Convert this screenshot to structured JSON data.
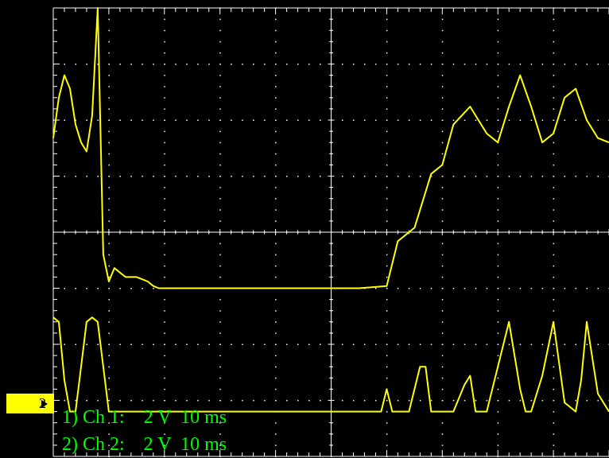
{
  "channel_marker": "2",
  "readouts": {
    "ch1": "1) Ch 1:    2 V  10 ms",
    "ch2": "2) Ch 2:    2 V  10 ms"
  },
  "colors": {
    "background": "#000000",
    "grid": "#ffffff",
    "trace": "#ffff00",
    "readout_text": "#00ff00",
    "marker_bg": "#ffff00"
  },
  "icons": {
    "marker_arrow": "right-pointer-icon"
  },
  "chart_data": {
    "type": "line",
    "title": "",
    "xlabel": "",
    "ylabel": "",
    "grid": true,
    "xlim": [
      0,
      100
    ],
    "ylim": [
      -5,
      5
    ],
    "series": [
      {
        "x": [
          0,
          1,
          2,
          3,
          4,
          5,
          6,
          7,
          8,
          9,
          10,
          11,
          12,
          13,
          14,
          15,
          16,
          17,
          18,
          19,
          20,
          25,
          30,
          35,
          40,
          45,
          50,
          55,
          60,
          62,
          65,
          68,
          70,
          72,
          75,
          78,
          80,
          82,
          84,
          86,
          88,
          90,
          92,
          94,
          96,
          98,
          100
        ],
        "y": [
          2.1,
          3,
          3.5,
          3.2,
          2.4,
          2,
          1.8,
          2.6,
          5,
          -0.5,
          -1.1,
          -0.8,
          -0.9,
          -1,
          -1,
          -1,
          -1.05,
          -1.1,
          -1.2,
          -1.25,
          -1.25,
          -1.25,
          -1.25,
          -1.25,
          -1.25,
          -1.25,
          -1.25,
          -1.25,
          -1.2,
          -0.2,
          0.1,
          1.3,
          1.5,
          2.4,
          2.8,
          2.2,
          2.0,
          2.8,
          3.5,
          2.8,
          2.0,
          2.2,
          3.0,
          3.2,
          2.5,
          2.1,
          2.0
        ]
      },
      {
        "x": [
          0,
          1,
          2,
          3,
          4,
          5,
          6,
          7,
          8,
          9,
          10,
          11,
          12,
          13,
          15,
          20,
          30,
          40,
          50,
          59,
          60,
          61,
          62,
          64,
          66,
          67,
          68,
          70,
          72,
          74,
          75,
          76,
          78,
          80,
          82,
          84,
          85,
          86,
          88,
          90,
          92,
          94,
          95,
          96,
          98,
          100
        ],
        "y": [
          -1.9,
          -2,
          -3.3,
          -4,
          -4,
          -3,
          -2,
          -1.9,
          -2,
          -3,
          -4,
          -4,
          -4,
          -4,
          -4,
          -4,
          -4,
          -4,
          -4,
          -4,
          -3.5,
          -4,
          -4,
          -4,
          -3,
          -3,
          -4,
          -4,
          -4,
          -3.4,
          -3.2,
          -4,
          -4,
          -3,
          -2,
          -3.5,
          -4,
          -4,
          -3.2,
          -2,
          -3.8,
          -4,
          -3.3,
          -2,
          -3.6,
          -4
        ]
      }
    ]
  }
}
